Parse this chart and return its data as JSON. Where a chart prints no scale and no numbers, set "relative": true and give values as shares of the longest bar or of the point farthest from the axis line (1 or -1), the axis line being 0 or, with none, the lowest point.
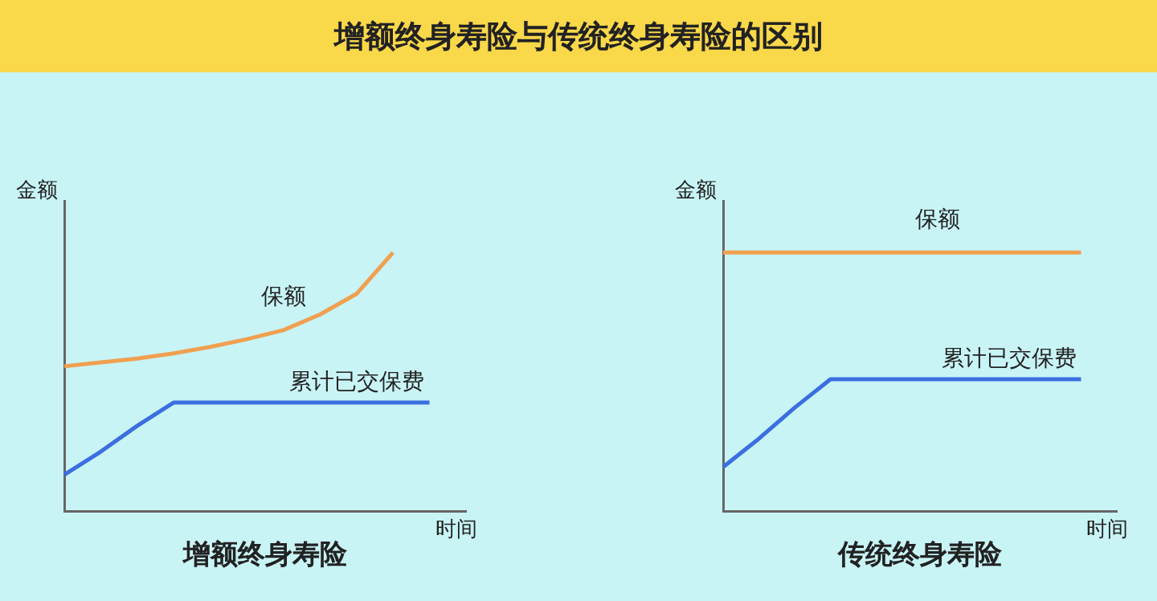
{
  "chart_data": [
    {
      "type": "other",
      "title": "增额终身寿险与传统终身寿险的区别"
    },
    {
      "type": "line",
      "title": "增额终身寿险",
      "xlabel": "时间",
      "ylabel": "金额",
      "relative": true,
      "marker": "none",
      "categories": [
        null,
        null,
        null,
        null,
        null,
        null,
        null,
        null,
        null,
        null,
        null,
        null
      ],
      "series": [
        {
          "name": "保额",
          "color": "#f0a050",
          "values": [
            0.56,
            0.575,
            0.59,
            0.61,
            0.635,
            0.665,
            0.7,
            0.76,
            0.84,
            1,
            null,
            null
          ]
        },
        {
          "name": "累计已交保费",
          "color": "#3b6fe0",
          "values": [
            0.14,
            0.23,
            0.33,
            0.42,
            0.42,
            0.42,
            0.42,
            0.42,
            0.42,
            0.42,
            0.42,
            null
          ]
        }
      ]
    },
    {
      "type": "line",
      "title": "传统终身寿险",
      "xlabel": "时间",
      "ylabel": "金额",
      "relative": true,
      "marker": "none",
      "categories": [
        null,
        null,
        null,
        null,
        null,
        null,
        null,
        null,
        null,
        null,
        null,
        null
      ],
      "series": [
        {
          "name": "保额",
          "color": "#f0a050",
          "values": [
            1,
            1,
            1,
            1,
            1,
            1,
            1,
            1,
            1,
            1,
            1,
            null
          ]
        },
        {
          "name": "累计已交保费",
          "color": "#3b6fe0",
          "values": [
            0.17,
            0.28,
            0.4,
            0.51,
            0.51,
            0.51,
            0.51,
            0.51,
            0.51,
            0.51,
            0.51,
            null
          ]
        }
      ]
    }
  ]
}
